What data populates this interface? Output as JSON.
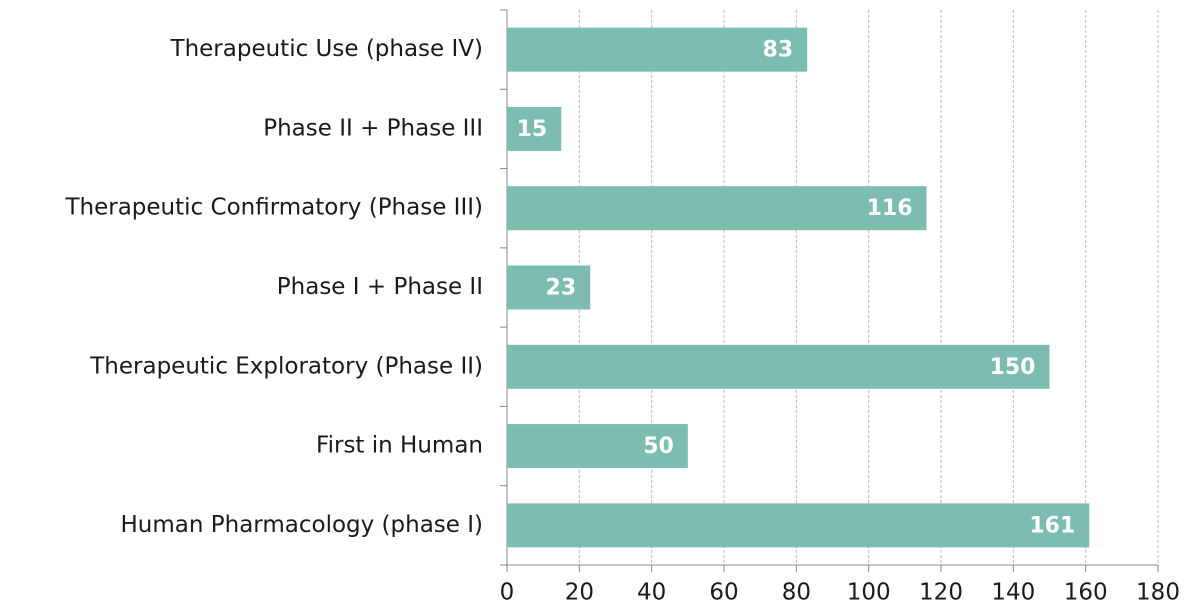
{
  "chart_data": {
    "type": "bar",
    "orientation": "horizontal",
    "categories": [
      "Therapeutic Use (phase IV)",
      "Phase II + Phase III",
      "Therapeutic Confirmatory (Phase III)",
      "Phase I + Phase II",
      "Therapeutic Exploratory (Phase II)",
      "First in Human",
      "Human Pharmacology (phase I)"
    ],
    "values": [
      83,
      15,
      116,
      23,
      150,
      50,
      161
    ],
    "color": "#7dbcb0",
    "xlim": [
      0,
      180
    ],
    "xticks": [
      0,
      20,
      40,
      60,
      80,
      100,
      120,
      140,
      160,
      180
    ],
    "grid": true
  }
}
